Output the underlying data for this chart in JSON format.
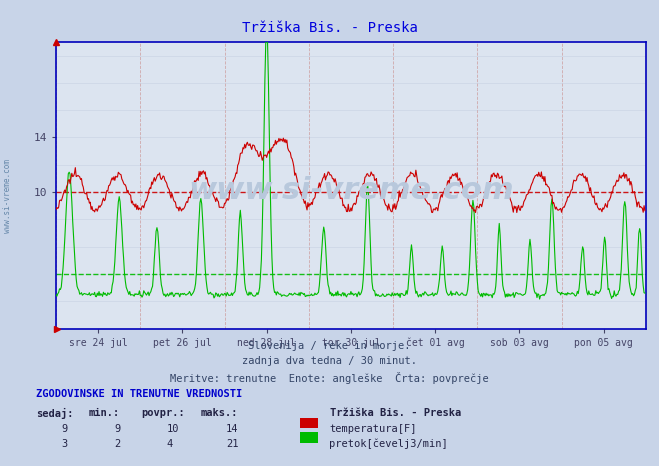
{
  "title": "Tržiška Bis. - Preska",
  "title_color": "#0000dd",
  "bg_color": "#c8d4e8",
  "plot_bg_color": "#dce4f0",
  "temp_color": "#cc0000",
  "flow_color": "#00bb00",
  "avg_temp": 10.0,
  "avg_flow": 4.0,
  "ylim": [
    0,
    21
  ],
  "xlim": [
    0,
    672
  ],
  "yticks": [
    10,
    14
  ],
  "xtick_positions": [
    48,
    144,
    240,
    336,
    432,
    528,
    624
  ],
  "xtick_labels": [
    "sre 24 jul",
    "pet 26 jul",
    "ned 28 jul",
    "tor 30 jul",
    "čet 01 avg",
    "sob 03 avg",
    "pon 05 avg"
  ],
  "vgrid_positions": [
    0,
    96,
    192,
    288,
    384,
    480,
    576,
    672
  ],
  "watermark": "www.si-vreme.com",
  "subtitle1": "Slovenija / reke in morje.",
  "subtitle2": "zadnja dva tedna / 30 minut.",
  "subtitle3": "Meritve: trenutne  Enote: angleške  Črta: povprečje",
  "table_header": "ZGODOVINSKE IN TRENUTNE VREDNOSTI",
  "col_headers": [
    "sedaj:",
    "min.:",
    "povpr.:",
    "maks.:"
  ],
  "row1": [
    "9",
    "9",
    "10",
    "14"
  ],
  "row2": [
    "3",
    "2",
    "4",
    "21"
  ],
  "legend_title": "Tržiška Bis. - Preska",
  "legend1": "temperatura[F]",
  "legend2": "pretok[čevelj3/min]",
  "n_points": 672
}
